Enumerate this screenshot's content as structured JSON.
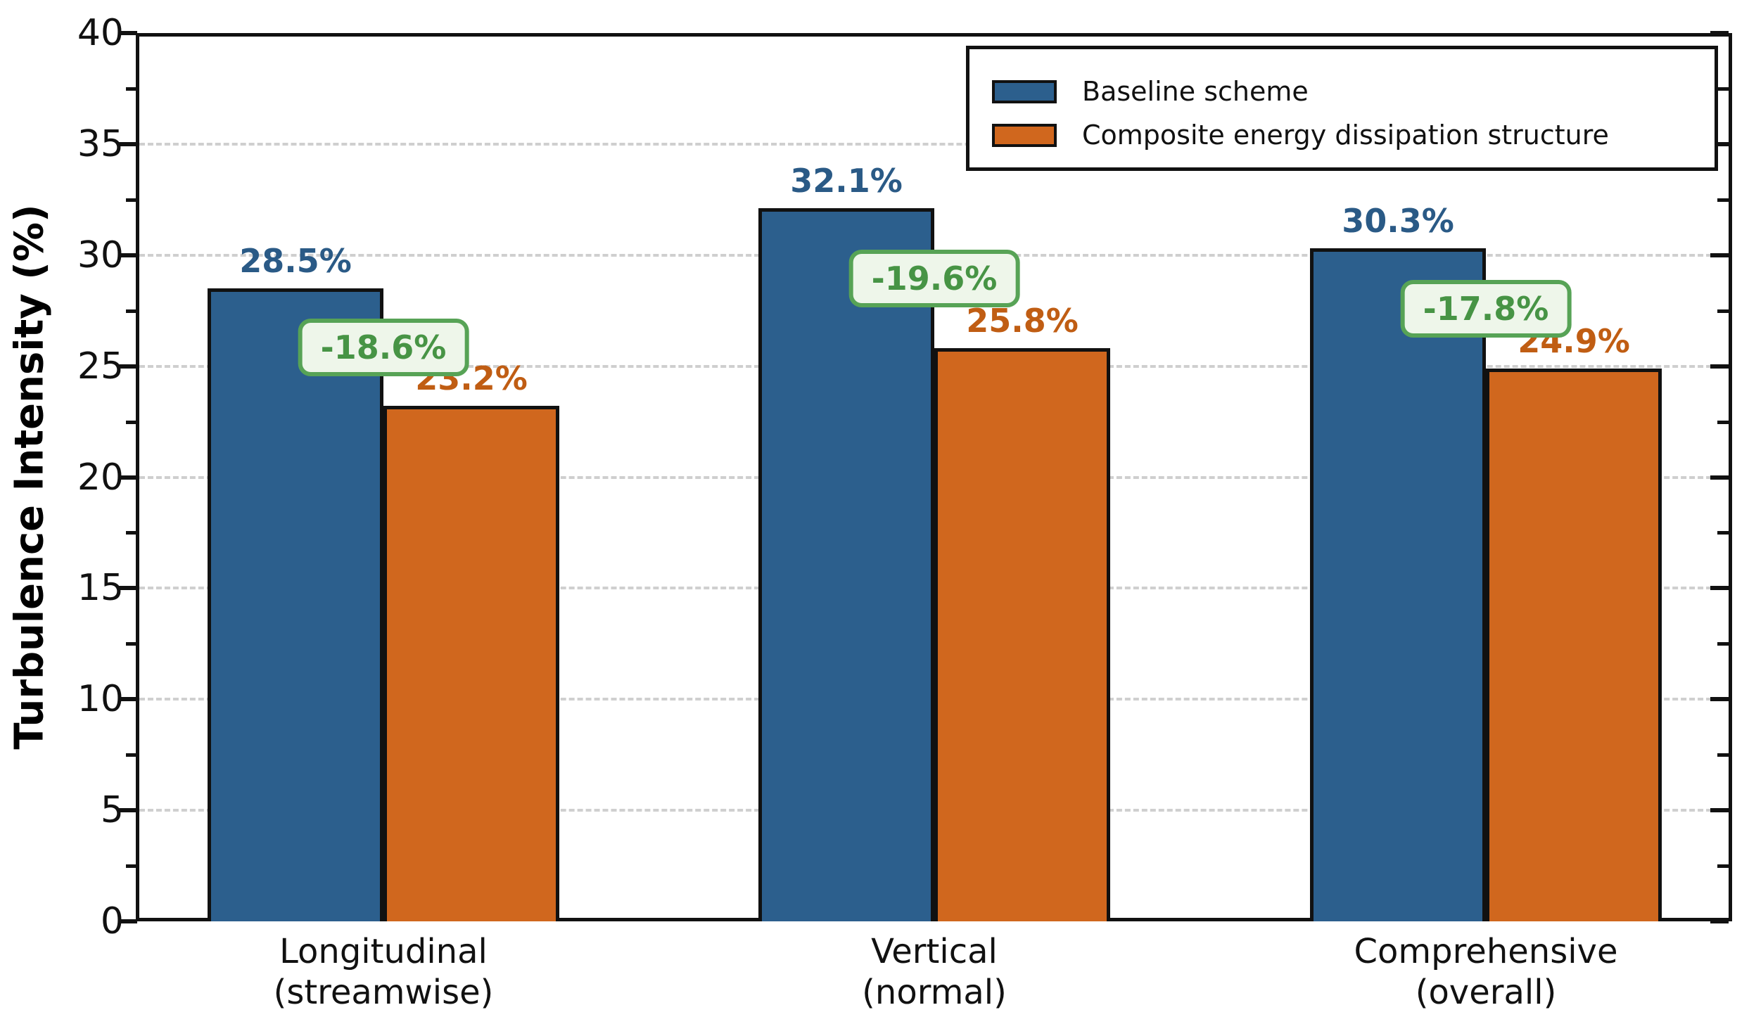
{
  "chart_data": {
    "type": "bar",
    "title": "",
    "ylabel": "Turbulence Intensity (%)",
    "xlabel": "",
    "ylim": [
      0,
      40
    ],
    "ytick_step": 5,
    "ytick_minor_step": 2.5,
    "ytick_labels": [
      "0",
      "5",
      "10",
      "15",
      "20",
      "25",
      "30",
      "35",
      "40"
    ],
    "grid": "horizontal-dashed",
    "legend_position": "top-right",
    "categories": [
      {
        "line1": "Longitudinal",
        "line2": "(streamwise)"
      },
      {
        "line1": "Vertical",
        "line2": "(normal)"
      },
      {
        "line1": "Comprehensive",
        "line2": "(overall)"
      }
    ],
    "series": [
      {
        "name": "Baseline scheme",
        "color": "#2c5f8d",
        "label_color": "#2a5a86",
        "values": [
          28.5,
          32.1,
          30.3
        ],
        "labels": [
          "28.5%",
          "32.1%",
          "30.3%"
        ]
      },
      {
        "name": "Composite energy dissipation structure",
        "color": "#d0671e",
        "label_color": "#c05d13",
        "values": [
          23.2,
          25.8,
          24.9
        ],
        "labels": [
          "23.2%",
          "25.8%",
          "24.9%"
        ]
      }
    ],
    "reduction_badges": {
      "labels": [
        "-18.6%",
        "-19.6%",
        "-17.8%"
      ],
      "text_color": "#479445",
      "border_color": "#57a356",
      "background": "#eef6ea"
    }
  },
  "colors": {
    "axis": "#111111",
    "grid": "#cfcfcf",
    "bar_edge": "#111111",
    "background": "#ffffff"
  }
}
